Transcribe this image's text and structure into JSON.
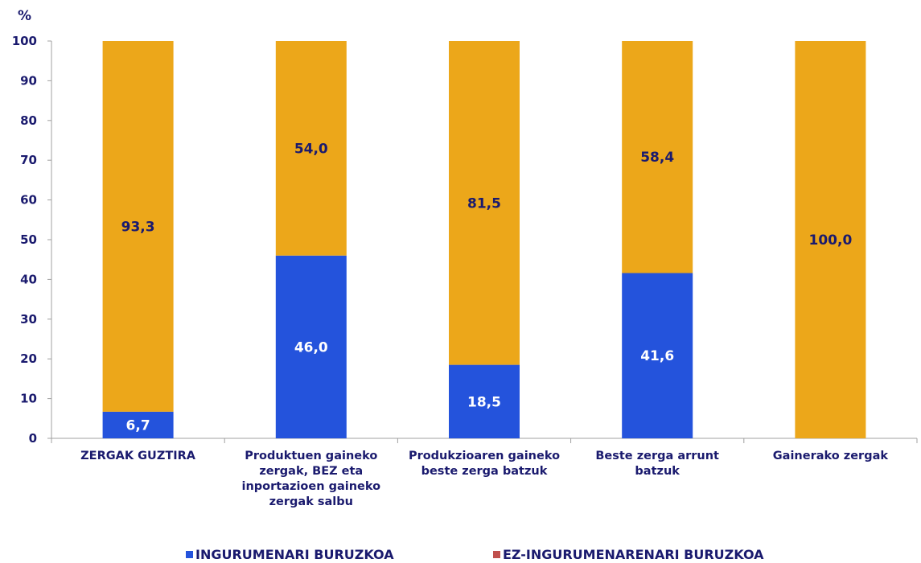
{
  "chart_data": {
    "type": "bar",
    "stacked": true,
    "unit_label": "%",
    "categories": [
      "ZERGAK GUZTIRA",
      "Produktuen gaineko zergak, BEZ eta inportazioen gaineko zergak salbu",
      "Produkzioaren gaineko beste zerga batzuk",
      "Beste zerga arrunt batzuk",
      "Gainerako zergak"
    ],
    "series": [
      {
        "name": "INGURUMENARI BURUZKOA",
        "values": [
          6.7,
          46.0,
          18.5,
          41.6,
          0.0
        ],
        "labels": [
          "6,7",
          "46,0",
          "18,5",
          "41,6",
          ""
        ],
        "color": "#2453dc",
        "label_color": "#ffffff"
      },
      {
        "name": "EZ-INGURUMENARENARI BURUZKOA",
        "values": [
          93.3,
          54.0,
          81.5,
          58.4,
          100.0
        ],
        "labels": [
          "93,3",
          "54,0",
          "81,5",
          "58,4",
          "100,0"
        ],
        "color": "#eca71a",
        "label_color": "#1a1a6e"
      }
    ],
    "legend_colors": [
      "#2453dc",
      "#c0504d"
    ],
    "ylim": [
      0,
      100
    ],
    "yticks": [
      0,
      10,
      20,
      30,
      40,
      50,
      60,
      70,
      80,
      90,
      100
    ],
    "grid": false,
    "legend_position": "bottom"
  }
}
